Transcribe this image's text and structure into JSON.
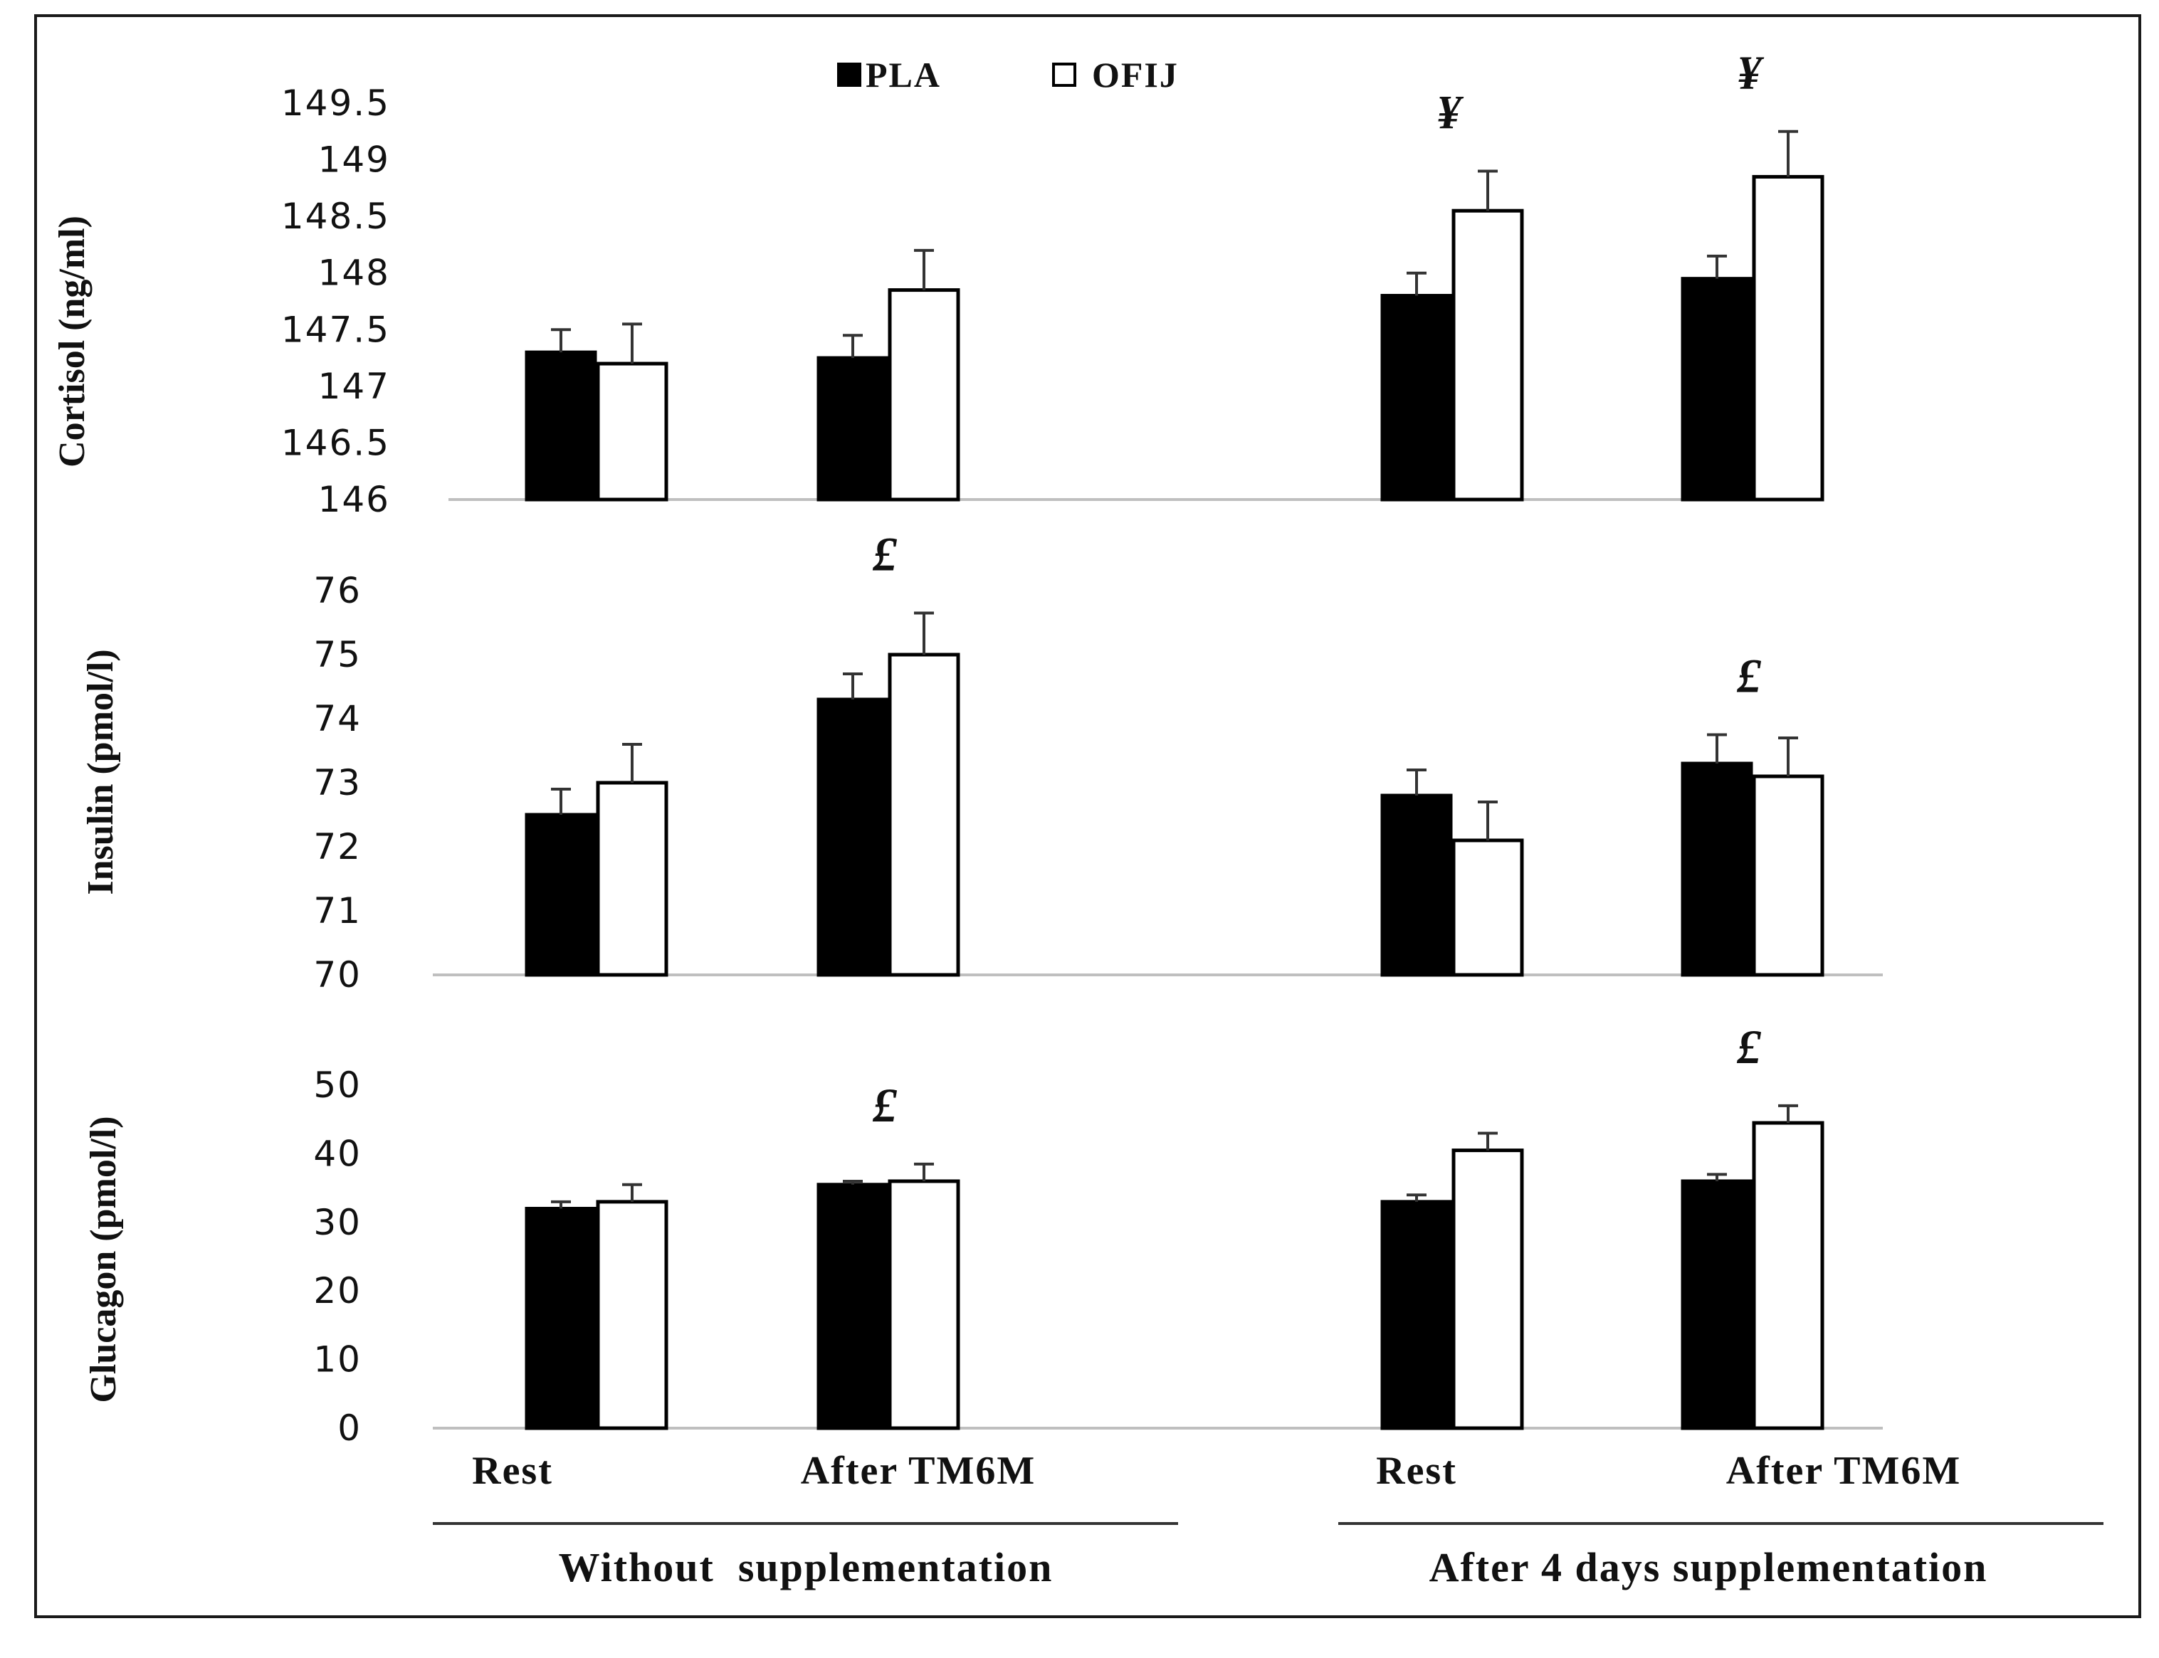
{
  "chart_data": {
    "type": "bar",
    "legend": [
      {
        "name": "PLA",
        "color": "#000000",
        "marker": "■"
      },
      {
        "name": "OFIJ",
        "color": "#ffffff",
        "marker": "□"
      }
    ],
    "categories": [
      "Rest",
      "After TM6M",
      "Rest",
      "After TM6M"
    ],
    "groups": [
      {
        "label": "Without  supplementation",
        "categories": [
          0,
          1
        ]
      },
      {
        "label": "After 4 days supplementation",
        "categories": [
          2,
          3
        ]
      }
    ],
    "panels": [
      {
        "ylabel": "Cortisol (ng/ml)",
        "ylim": [
          146,
          149.5
        ],
        "yticks": [
          146,
          146.5,
          147,
          147.5,
          148,
          148.5,
          149,
          149.5
        ],
        "ytick_labels": [
          "146",
          "146.5",
          "147",
          "147.5",
          "148",
          "148.5",
          "149",
          "149.5"
        ],
        "series": [
          {
            "name": "PLA",
            "values": [
              147.3,
              147.25,
              147.8,
              147.95
            ],
            "errors": [
              0.2,
              0.2,
              0.2,
              0.2
            ]
          },
          {
            "name": "OFIJ",
            "values": [
              147.2,
              147.85,
              148.55,
              148.85
            ],
            "errors": [
              0.35,
              0.35,
              0.35,
              0.4
            ]
          }
        ],
        "annotations": [
          {
            "category": 2,
            "text": "¥"
          },
          {
            "category": 3,
            "text": "¥"
          }
        ]
      },
      {
        "ylabel": "Insulin  (pmol/l)",
        "ylim": [
          70,
          76
        ],
        "yticks": [
          70,
          71,
          72,
          73,
          74,
          75,
          76
        ],
        "ytick_labels": [
          "70",
          "71",
          "72",
          "73",
          "74",
          "75",
          "76"
        ],
        "series": [
          {
            "name": "PLA",
            "values": [
              72.5,
              74.3,
              72.8,
              73.3
            ],
            "errors": [
              0.4,
              0.4,
              0.4,
              0.45
            ]
          },
          {
            "name": "OFIJ",
            "values": [
              73.0,
              75.0,
              72.1,
              73.1
            ],
            "errors": [
              0.6,
              0.65,
              0.6,
              0.6
            ]
          }
        ],
        "annotations": [
          {
            "category": 1,
            "text": "£"
          },
          {
            "category": 3,
            "text": "£"
          }
        ]
      },
      {
        "ylabel": "Glucagon (pmol/l)",
        "ylim": [
          0,
          50
        ],
        "yticks": [
          0,
          10,
          20,
          30,
          40,
          50
        ],
        "ytick_labels": [
          "0",
          "10",
          "20",
          "30",
          "40",
          "50"
        ],
        "series": [
          {
            "name": "PLA",
            "values": [
              32,
              35.5,
              33,
              36
            ],
            "errors": [
              1,
              0.5,
              1,
              1
            ]
          },
          {
            "name": "OFIJ",
            "values": [
              33,
              36,
              40.5,
              44.5
            ],
            "errors": [
              2.5,
              2.5,
              2.5,
              2.5
            ]
          }
        ],
        "annotations": [
          {
            "category": 1,
            "text": "£"
          },
          {
            "category": 3,
            "text": "£"
          }
        ]
      }
    ]
  }
}
